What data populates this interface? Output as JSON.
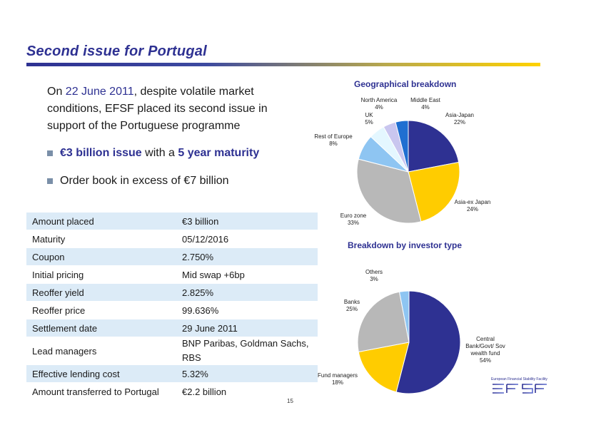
{
  "slide": {
    "title": "Second issue for Portugal",
    "page_number": "15"
  },
  "intro": {
    "prefix": "On ",
    "date": "22 June 2011",
    "suffix": ", despite volatile market conditions, EFSF placed its second issue in support of the Portuguese programme"
  },
  "bullets": [
    {
      "amount": "€3 billion issue",
      "middle": " with a ",
      "maturity": "5 year maturity"
    },
    {
      "text": "Order book in excess of €7 billion"
    }
  ],
  "terms": [
    {
      "label": "Amount placed",
      "value": "€3 billion"
    },
    {
      "label": "Maturity",
      "value": "05/12/2016"
    },
    {
      "label": "Coupon",
      "value": "2.750%"
    },
    {
      "label": "Initial pricing",
      "value": "Mid swap +6bp"
    },
    {
      "label": "Reoffer yield",
      "value": "2.825%"
    },
    {
      "label": "Reoffer price",
      "value": "99.636%"
    },
    {
      "label": "Settlement date",
      "value": "29 June 2011"
    },
    {
      "label": "Lead managers",
      "value": "BNP Paribas, Goldman Sachs, RBS"
    },
    {
      "label": "Effective lending cost",
      "value": "5.32%"
    },
    {
      "label": "Amount transferred to Portugal",
      "value": "€2.2 billion"
    }
  ],
  "colors": {
    "title": "#2e3192",
    "table_shade": "#dcebf7",
    "accent_yellow": "#ffd200"
  },
  "chart_data": [
    {
      "type": "pie",
      "title": "Geographical breakdown",
      "slices": [
        {
          "label": "Asia-Japan",
          "value": 22,
          "display": "22%",
          "color": "#2e3192"
        },
        {
          "label": "Asia-ex Japan",
          "value": 24,
          "display": "24%",
          "color": "#ffcc00"
        },
        {
          "label": "Euro zone",
          "value": 33,
          "display": "33%",
          "color": "#b8b8b8"
        },
        {
          "label": "Rest of Europe",
          "value": 8,
          "display": "8%",
          "color": "#8ec5f2"
        },
        {
          "label": "UK",
          "value": 5,
          "display": "5%",
          "color": "#e4f7ff"
        },
        {
          "label": "North America",
          "value": 4,
          "display": "4%",
          "color": "#c9c6ef"
        },
        {
          "label": "Middle East",
          "value": 4,
          "display": "4%",
          "color": "#1f6fd1"
        }
      ]
    },
    {
      "type": "pie",
      "title": "Breakdown by investor type",
      "slices": [
        {
          "label": "Central Bank/Govt/ Sov wealth fund",
          "value": 54,
          "display": "54%",
          "color": "#2e3192"
        },
        {
          "label": "Fund managers",
          "value": 18,
          "display": "18%",
          "color": "#ffcc00"
        },
        {
          "label": "Banks",
          "value": 25,
          "display": "25%",
          "color": "#b8b8b8"
        },
        {
          "label": "Others",
          "value": 3,
          "display": "3%",
          "color": "#8ec5f2"
        }
      ]
    }
  ],
  "logo": {
    "tagline": "European Financial Stability Facility",
    "wordmark": "EFSF"
  }
}
